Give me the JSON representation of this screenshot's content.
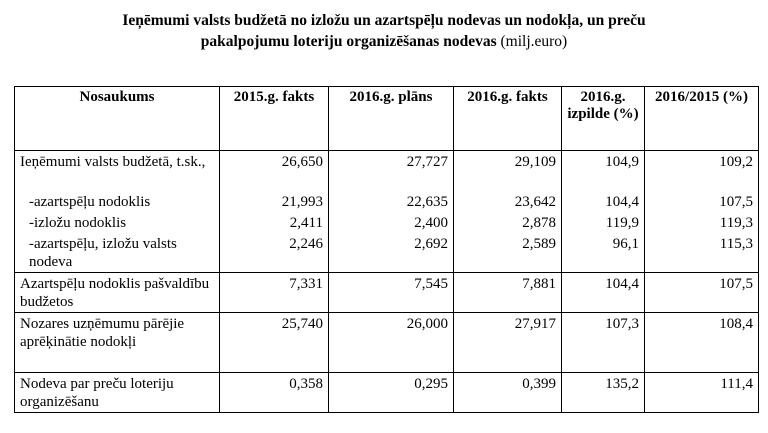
{
  "title": {
    "bold_line1": "Ieņēmumi valsts budžetā no izložu un azartspēļu nodevas un nodokļa, un preču",
    "bold_line2": "pakalpojumu loteriju organizēšanas nodevas",
    "unit": "(milj.euro)"
  },
  "table": {
    "headers": [
      "Nosaukums",
      "2015.g. fakts",
      "2016.g. plāns",
      "2016.g. fakts",
      "2016.g. izpilde (%)",
      "2016/2015 (%)"
    ],
    "rows": [
      {
        "name": "Ieņēmumi valsts budžetā, t.sk.,",
        "v2015": "26,650",
        "plan2016": "27,727",
        "fakts2016": "29,109",
        "izpilde": "104,9",
        "ratio": "109,2"
      },
      {
        "name": "-azartspēļu nodoklis",
        "v2015": "21,993",
        "plan2016": "22,635",
        "fakts2016": "23,642",
        "izpilde": "104,4",
        "ratio": "107,5"
      },
      {
        "name": "-izložu nodoklis",
        "v2015": "2,411",
        "plan2016": "2,400",
        "fakts2016": "2,878",
        "izpilde": "119,9",
        "ratio": "119,3"
      },
      {
        "name": "-azartspēļu, izložu valsts nodeva",
        "v2015": "2,246",
        "plan2016": "2,692",
        "fakts2016": "2,589",
        "izpilde": "96,1",
        "ratio": "115,3"
      },
      {
        "name": "Azartspēļu nodoklis pašvaldību budžetos",
        "v2015": "7,331",
        "plan2016": "7,545",
        "fakts2016": "7,881",
        "izpilde": "104,4",
        "ratio": "107,5"
      },
      {
        "name": "Nozares uzņēmumu pārējie aprēķinātie nodokļi",
        "v2015": "25,740",
        "plan2016": "26,000",
        "fakts2016": "27,917",
        "izpilde": "107,3",
        "ratio": "108,4"
      },
      {
        "name": "Nodeva par preču loteriju organizēšanu",
        "v2015": "0,358",
        "plan2016": "0,295",
        "fakts2016": "0,399",
        "izpilde": "135,2",
        "ratio": "111,4"
      }
    ]
  }
}
